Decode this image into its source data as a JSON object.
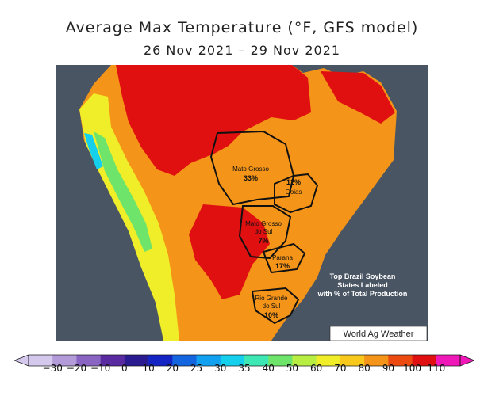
{
  "header": {
    "title": "Average Max Temperature (°F, GFS model)",
    "date_range": "26 Nov 2021 – 29 Nov 2021"
  },
  "map": {
    "states": [
      {
        "key": "mato-grosso",
        "name_lines": [
          "Mato Grosso"
        ],
        "pct": "33%"
      },
      {
        "key": "goias",
        "name_lines": [
          "Goias"
        ],
        "pct": "12%"
      },
      {
        "key": "mato-grosso-do-sul",
        "name_lines": [
          "Mato Grosso",
          "do Sul"
        ],
        "pct": "7%"
      },
      {
        "key": "parana",
        "name_lines": [
          "Parana"
        ],
        "pct": "17%"
      },
      {
        "key": "rio-grande-do-sul",
        "name_lines": [
          "Rio Grande",
          "do Sul"
        ],
        "pct": "10%"
      }
    ],
    "annotation_lines": [
      "Top Brazil Soybean",
      "States Labeled",
      "with % of Total Production"
    ],
    "credit": "World Ag Weather"
  },
  "colorbar": {
    "ticks": [
      "−30",
      "−20",
      "−10",
      "0",
      "10",
      "20",
      "25",
      "30",
      "35",
      "40",
      "50",
      "60",
      "70",
      "80",
      "90",
      "100",
      "110"
    ],
    "colors": [
      "#d4c8ec",
      "#b39ad8",
      "#8a64c2",
      "#5a2aa0",
      "#2a1c90",
      "#1424c4",
      "#1466e0",
      "#12a0f0",
      "#14d0ec",
      "#3ee8b4",
      "#6ee46a",
      "#b8ee42",
      "#f0ee28",
      "#f8c81c",
      "#f49418",
      "#ec4a10",
      "#e01010",
      "#f018b8"
    ]
  }
}
